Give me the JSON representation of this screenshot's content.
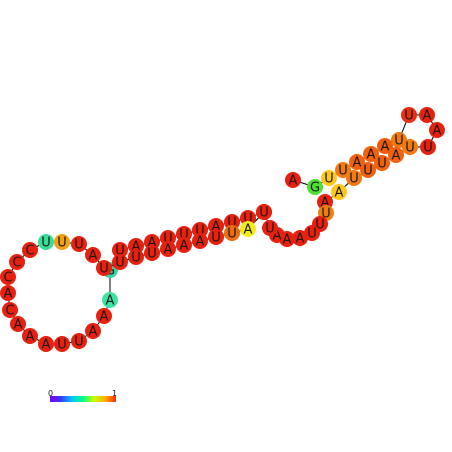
{
  "diagram": {
    "title": "",
    "nucleotides": [
      {
        "base": "A",
        "color": "#e8200f"
      },
      {
        "base": "G",
        "color": "#4fe033"
      },
      {
        "base": "U",
        "color": "#ffc71a"
      },
      {
        "base": "U",
        "color": "#f27a10"
      },
      {
        "base": "A",
        "color": "#f1610f"
      },
      {
        "base": "A",
        "color": "#f1610f"
      },
      {
        "base": "A",
        "color": "#ef5a0f"
      },
      {
        "base": "U",
        "color": "#f27a10"
      },
      {
        "base": "U",
        "color": "#e83010"
      },
      {
        "base": "A",
        "color": "#e8200f"
      },
      {
        "base": "A",
        "color": "#e8200f"
      },
      {
        "base": "U",
        "color": "#e8200f"
      },
      {
        "base": "U",
        "color": "#f27a10"
      },
      {
        "base": "A",
        "color": "#f1610f"
      },
      {
        "base": "U",
        "color": "#f1610f"
      },
      {
        "base": "U",
        "color": "#f1610f"
      },
      {
        "base": "U",
        "color": "#f27a10"
      },
      {
        "base": "A",
        "color": "#ffc71a"
      },
      {
        "base": "A",
        "color": "#e8200f"
      },
      {
        "base": "U",
        "color": "#ef8010"
      },
      {
        "base": "U",
        "color": "#e8200f"
      },
      {
        "base": "U",
        "color": "#e8200f"
      },
      {
        "base": "A",
        "color": "#e8200f"
      },
      {
        "base": "A",
        "color": "#e8200f"
      },
      {
        "base": "A",
        "color": "#e8200f"
      },
      {
        "base": "U",
        "color": "#e8200f"
      },
      {
        "base": "U",
        "color": "#e8200f"
      },
      {
        "base": "U",
        "color": "#e8200f"
      },
      {
        "base": "U",
        "color": "#e8200f"
      },
      {
        "base": "A",
        "color": "#e8200f"
      },
      {
        "base": "U",
        "color": "#e8200f"
      },
      {
        "base": "U",
        "color": "#e8200f"
      },
      {
        "base": "U",
        "color": "#e8200f"
      },
      {
        "base": "A",
        "color": "#e8200f"
      },
      {
        "base": "A",
        "color": "#e8200f"
      },
      {
        "base": "U",
        "color": "#e8200f"
      },
      {
        "base": "G",
        "color": "#35d4a6"
      },
      {
        "base": "A",
        "color": "#3ee3a0"
      },
      {
        "base": "A",
        "color": "#e8200f"
      },
      {
        "base": "A",
        "color": "#e8200f"
      },
      {
        "base": "U",
        "color": "#e8200f"
      },
      {
        "base": "U",
        "color": "#e8200f"
      },
      {
        "base": "A",
        "color": "#e8200f"
      },
      {
        "base": "A",
        "color": "#e8200f"
      },
      {
        "base": "A",
        "color": "#e8200f"
      },
      {
        "base": "C",
        "color": "#e8200f"
      },
      {
        "base": "A",
        "color": "#e8200f"
      },
      {
        "base": "C",
        "color": "#e8200f"
      },
      {
        "base": "C",
        "color": "#e8200f"
      },
      {
        "base": "C",
        "color": "#e8200f"
      },
      {
        "base": "U",
        "color": "#37dc95"
      },
      {
        "base": "U",
        "color": "#f1a015"
      },
      {
        "base": "U",
        "color": "#e8200f"
      },
      {
        "base": "A",
        "color": "#e8200f"
      },
      {
        "base": "U",
        "color": "#e8200f"
      },
      {
        "base": "U",
        "color": "#e8200f"
      },
      {
        "base": "U",
        "color": "#e8200f"
      },
      {
        "base": "U",
        "color": "#e8200f"
      },
      {
        "base": "A",
        "color": "#e8200f"
      },
      {
        "base": "A",
        "color": "#e8200f"
      },
      {
        "base": "A",
        "color": "#e8200f"
      },
      {
        "base": "U",
        "color": "#e8200f"
      },
      {
        "base": "U",
        "color": "#f06a10"
      },
      {
        "base": "A",
        "color": "#f3ec1c"
      },
      {
        "base": "U",
        "color": "#e8200f"
      },
      {
        "base": "U",
        "color": "#e8200f"
      },
      {
        "base": "U",
        "color": "#e8200f"
      },
      {
        "base": "U",
        "color": "#e8200f"
      },
      {
        "base": "A",
        "color": "#e8200f"
      },
      {
        "base": "A",
        "color": "#e8200f"
      },
      {
        "base": "C",
        "color": "#e8200f"
      },
      {
        "base": "A",
        "color": "#e8200f"
      },
      {
        "base": "A",
        "color": "#e8200f"
      }
    ]
  },
  "color_scale": {
    "min_label": "0",
    "max_label": "1",
    "stops": [
      "#7a00ff",
      "#3a3aff",
      "#00c8ff",
      "#00ff80",
      "#c8ff00",
      "#ffb000",
      "#ff2a00"
    ]
  }
}
